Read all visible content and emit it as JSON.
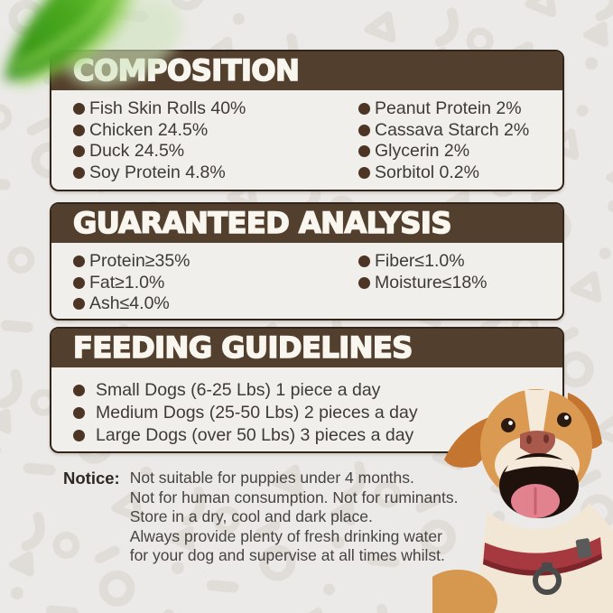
{
  "colors": {
    "page_bg": "#eceae8",
    "pattern": "#dcd9d5",
    "header_bg": "#533f2d",
    "box_bg": "#f1efec",
    "border": "#332519",
    "bullet": "#4c3524",
    "text": "#3e3a37",
    "title_text": "#f9f6f0",
    "notice_label": "#2e2823",
    "leaf_green": "#4aa81f",
    "dog_tan": "#db9a52",
    "collar_red": "#a6393f"
  },
  "sections": {
    "composition": {
      "title": "COMPOSITION",
      "left": [
        "Fish Skin Rolls 40%",
        "Chicken 24.5%",
        "Duck 24.5%",
        "Soy Protein 4.8%"
      ],
      "right": [
        "Peanut Protein 2%",
        "Cassava Starch 2%",
        "Glycerin 2%",
        "Sorbitol 0.2%"
      ]
    },
    "analysis": {
      "title": "GUARANTEED ANALYSIS",
      "left": [
        "Protein≥35%",
        "Fat≥1.0%",
        "Ash≤4.0%"
      ],
      "right": [
        "Fiber≤1.0%",
        "Moisture≤18%"
      ]
    },
    "feeding": {
      "title": "FEEDING GUIDELINES",
      "items": [
        "Small Dogs (6-25 Lbs) 1 piece a day",
        "Medium Dogs (25-50 Lbs) 2 pieces a day",
        "Large Dogs (over 50 Lbs) 3 pieces a day"
      ]
    }
  },
  "notice": {
    "label": "Notice:",
    "lines": [
      "Not suitable for puppies under 4 months.",
      "Not for human consumption. Not for ruminants.",
      "Store in a dry, cool and dark place.",
      "Always provide plenty of fresh drinking water",
      "for your dog and supervise at all times whilst."
    ]
  },
  "decor": {
    "leaf": "green-leaf",
    "dog": "happy-tan-white-dog-with-red-collar"
  }
}
